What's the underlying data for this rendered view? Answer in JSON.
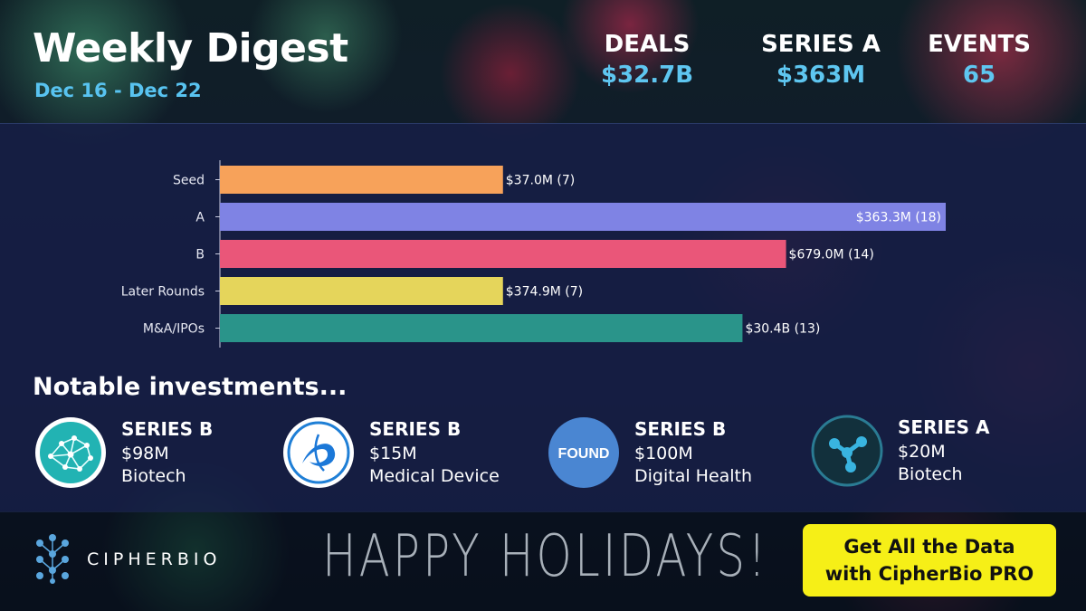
{
  "header": {
    "title": "Weekly Digest",
    "date_range": "Dec 16 - Dec 22"
  },
  "stats": [
    {
      "label": "DEALS",
      "value": "$32.7B"
    },
    {
      "label": "SERIES A",
      "value": "$363M"
    },
    {
      "label": "EVENTS",
      "value": "65"
    }
  ],
  "chart_data": {
    "type": "bar",
    "orientation": "horizontal",
    "categories": [
      "Seed",
      "A",
      "B",
      "Later Rounds",
      "M&A/IPOs"
    ],
    "bar_lengths_relative": [
      0.39,
      1.0,
      0.78,
      0.39,
      0.72
    ],
    "data_labels": [
      "$37.0M (7)",
      "$363.3M (18)",
      "$679.0M (14)",
      "$374.9M (7)",
      "$30.4B (13)"
    ],
    "colors": [
      "#f7a25a",
      "#7f83e4",
      "#ea5679",
      "#e5d55b",
      "#2a948a"
    ],
    "title": "",
    "xlabel": "",
    "ylabel": "",
    "grid": false
  },
  "notable": {
    "heading": "Notable investments...",
    "items": [
      {
        "round": "SERIES B",
        "amount": "$98M",
        "sector": "Biotech",
        "icon": "network-brain-icon"
      },
      {
        "round": "SERIES B",
        "amount": "$15M",
        "sector": "Medical Device",
        "icon": "blue-swirl-icon"
      },
      {
        "round": "SERIES B",
        "amount": "$100M",
        "sector": "Digital Health",
        "icon": "found-logo",
        "logo_text": "FOUND"
      },
      {
        "round": "SERIES A",
        "amount": "$20M",
        "sector": "Biotech",
        "icon": "molecule-icon"
      }
    ]
  },
  "footer": {
    "brand": "CIPHERBIO",
    "greeting": "HAPPY HOLIDAYS!",
    "cta_line1": "Get All the Data",
    "cta_line2": "with CipherBio PRO"
  }
}
